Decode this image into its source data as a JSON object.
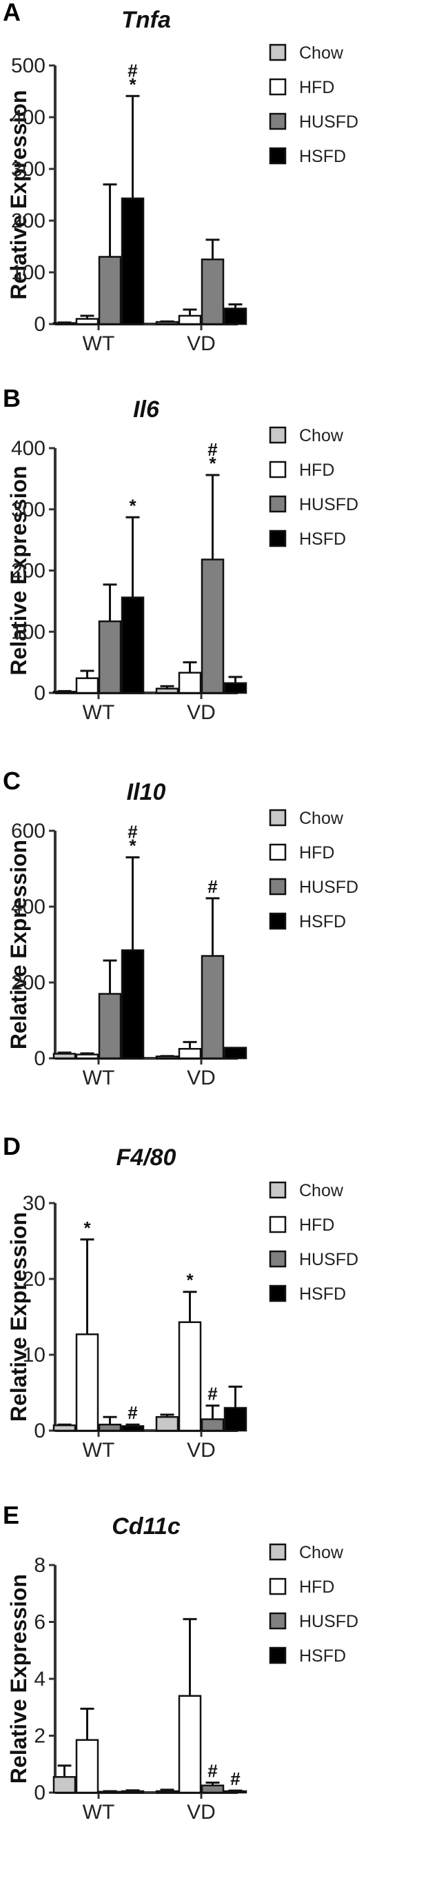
{
  "colors": {
    "Chow": "#c8c8c8",
    "HFD": "#ffffff",
    "HUSFD": "#808080",
    "HSFD": "#000000"
  },
  "chart_data": [
    {
      "panel_label": "A",
      "type": "bar",
      "title": "Tnfa",
      "ylabel": "Relative  Expression",
      "categories": [
        "WT",
        "VD"
      ],
      "ylim": [
        0,
        500
      ],
      "yticks": [
        0,
        100,
        200,
        300,
        400,
        500
      ],
      "series": [
        {
          "name": "Chow",
          "values": [
            2,
            4
          ],
          "errors": [
            1,
            1
          ]
        },
        {
          "name": "HFD",
          "values": [
            10,
            16
          ],
          "errors": [
            6,
            12
          ]
        },
        {
          "name": "HUSFD",
          "values": [
            130,
            125
          ],
          "errors": [
            140,
            38
          ]
        },
        {
          "name": "HSFD",
          "values": [
            243,
            30
          ],
          "errors": [
            198,
            8
          ]
        }
      ],
      "annotations": [
        {
          "category": "WT",
          "series": "HSFD",
          "text": "#\n*"
        }
      ]
    },
    {
      "panel_label": "B",
      "type": "bar",
      "title": "Il6",
      "ylabel": "Relative  Expression",
      "categories": [
        "WT",
        "VD"
      ],
      "ylim": [
        0,
        400
      ],
      "yticks": [
        0,
        100,
        200,
        300,
        400
      ],
      "series": [
        {
          "name": "Chow",
          "values": [
            2,
            7
          ],
          "errors": [
            1,
            4
          ]
        },
        {
          "name": "HFD",
          "values": [
            24,
            33
          ],
          "errors": [
            12,
            17
          ]
        },
        {
          "name": "HUSFD",
          "values": [
            117,
            218
          ],
          "errors": [
            60,
            138
          ]
        },
        {
          "name": "HSFD",
          "values": [
            156,
            16
          ],
          "errors": [
            131,
            10
          ]
        }
      ],
      "annotations": [
        {
          "category": "WT",
          "series": "HSFD",
          "text": "*"
        },
        {
          "category": "VD",
          "series": "HUSFD",
          "text": "#\n*"
        }
      ]
    },
    {
      "panel_label": "C",
      "type": "bar",
      "title": "Il10",
      "ylabel": "Relative  Expression",
      "categories": [
        "WT",
        "VD"
      ],
      "ylim": [
        0,
        600
      ],
      "yticks": [
        0,
        200,
        400,
        600
      ],
      "series": [
        {
          "name": "Chow",
          "values": [
            12,
            5
          ],
          "errors": [
            3,
            1
          ]
        },
        {
          "name": "HFD",
          "values": [
            10,
            25
          ],
          "errors": [
            3,
            18
          ]
        },
        {
          "name": "HUSFD",
          "values": [
            170,
            270
          ],
          "errors": [
            88,
            152
          ]
        },
        {
          "name": "HSFD",
          "values": [
            285,
            28
          ],
          "errors": [
            245,
            0
          ]
        }
      ],
      "annotations": [
        {
          "category": "WT",
          "series": "HSFD",
          "text": "#\n*"
        },
        {
          "category": "VD",
          "series": "HUSFD",
          "text": "#"
        }
      ]
    },
    {
      "panel_label": "D",
      "type": "bar",
      "title": "F4/80",
      "ylabel": "Relative  Expression",
      "categories": [
        "WT",
        "VD"
      ],
      "ylim": [
        0,
        30
      ],
      "yticks": [
        0,
        10,
        20,
        30
      ],
      "series": [
        {
          "name": "Chow",
          "values": [
            0.7,
            1.8
          ],
          "errors": [
            0.1,
            0.3
          ]
        },
        {
          "name": "HFD",
          "values": [
            12.7,
            14.3
          ],
          "errors": [
            12.5,
            4.0
          ]
        },
        {
          "name": "HUSFD",
          "values": [
            0.8,
            1.5
          ],
          "errors": [
            1.0,
            1.8
          ]
        },
        {
          "name": "HSFD",
          "values": [
            0.6,
            3.0
          ],
          "errors": [
            0.2,
            2.8
          ]
        }
      ],
      "annotations": [
        {
          "category": "WT",
          "series": "HFD",
          "text": "*"
        },
        {
          "category": "WT",
          "series": "HSFD",
          "text": "#"
        },
        {
          "category": "VD",
          "series": "HFD",
          "text": "*"
        },
        {
          "category": "VD",
          "series": "HUSFD",
          "text": "#"
        }
      ]
    },
    {
      "panel_label": "E",
      "type": "bar",
      "title": "Cd11c",
      "ylabel": "Relative  Expression",
      "categories": [
        "WT",
        "VD"
      ],
      "ylim": [
        0,
        8
      ],
      "yticks": [
        0,
        2,
        4,
        6,
        8
      ],
      "series": [
        {
          "name": "Chow",
          "values": [
            0.55,
            0.05
          ],
          "errors": [
            0.4,
            0.05
          ]
        },
        {
          "name": "HFD",
          "values": [
            1.85,
            3.4
          ],
          "errors": [
            1.1,
            2.7
          ]
        },
        {
          "name": "HUSFD",
          "values": [
            0.03,
            0.25
          ],
          "errors": [
            0.02,
            0.1
          ]
        },
        {
          "name": "HSFD",
          "values": [
            0.05,
            0.05
          ],
          "errors": [
            0.03,
            0.02
          ]
        }
      ],
      "annotations": [
        {
          "category": "VD",
          "series": "HUSFD",
          "text": "#"
        },
        {
          "category": "VD",
          "series": "HSFD",
          "text": "#"
        }
      ]
    }
  ]
}
